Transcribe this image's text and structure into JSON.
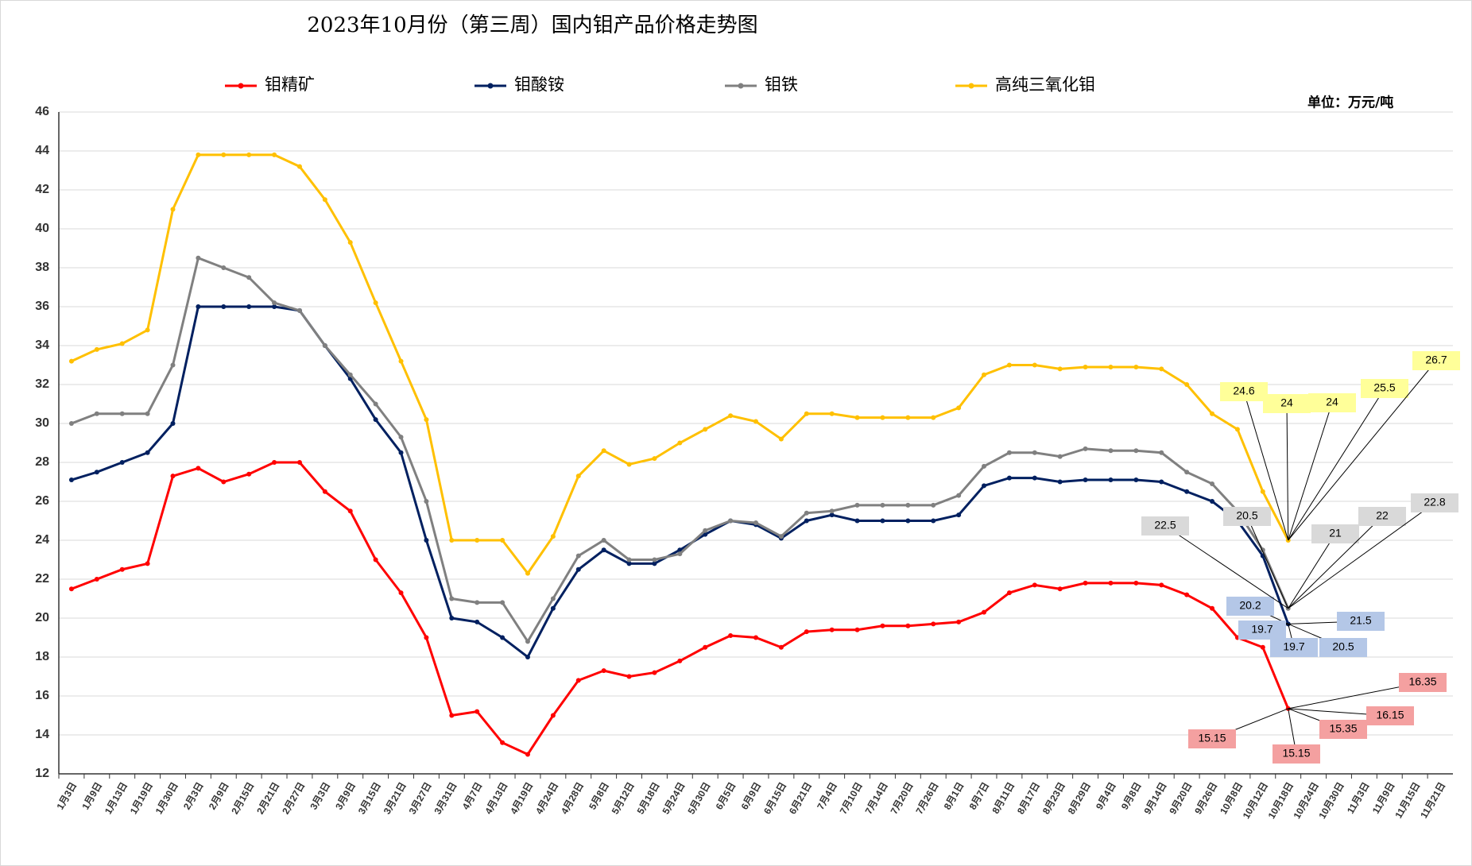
{
  "chart_data": {
    "type": "line",
    "title": "2023年10月份（第三周）国内钼产品价格走势图",
    "unit": "单位：万元/吨",
    "categories": [
      "1月3日",
      "1月9日",
      "1月13日",
      "1月19日",
      "1月30日",
      "2月3日",
      "2月9日",
      "2月15日",
      "2月21日",
      "2月27日",
      "3月3日",
      "3月9日",
      "3月15日",
      "3月21日",
      "3月27日",
      "3月31日",
      "4月7日",
      "4月13日",
      "4月19日",
      "4月24日",
      "4月28日",
      "5月8日",
      "5月12日",
      "5月18日",
      "5月24日",
      "5月30日",
      "6月5日",
      "6月9日",
      "6月15日",
      "6月21日",
      "7月4日",
      "7月10日",
      "7月14日",
      "7月20日",
      "7月26日",
      "8月1日",
      "8月7日",
      "8月11日",
      "8月17日",
      "8月23日",
      "8月29日",
      "9月4日",
      "9月8日",
      "9月14日",
      "9月20日",
      "9月26日",
      "10月8日",
      "10月12日",
      "10月18日",
      "10月24日",
      "10月30日",
      "11月3日",
      "11月9日",
      "11月15日",
      "11月21日"
    ],
    "ylim": [
      12,
      46
    ],
    "yticks": [
      12,
      14,
      16,
      18,
      20,
      22,
      24,
      26,
      28,
      30,
      32,
      34,
      36,
      38,
      40,
      42,
      44,
      46
    ],
    "grid": true,
    "series": [
      {
        "name": "钼精矿",
        "color": "#ff0000",
        "label_color": "#f4a0a0",
        "values": [
          21.5,
          22,
          22.5,
          22.8,
          27.3,
          27.7,
          27,
          27.4,
          28,
          28,
          26.5,
          25.5,
          23,
          21.3,
          19,
          15,
          15.2,
          13.6,
          13,
          15,
          16.8,
          17.3,
          17,
          17.2,
          17.8,
          18.5,
          19.1,
          19,
          18.5,
          19.3,
          19.4,
          19.4,
          19.6,
          19.6,
          19.7,
          19.8,
          20.3,
          21.3,
          21.7,
          21.5,
          21.8,
          21.8,
          21.8,
          21.7,
          21.2,
          20.5,
          19,
          18.5,
          15.35,
          null,
          null,
          null,
          null,
          null,
          null
        ],
        "callouts": [
          15.15,
          15.15,
          15.35,
          16.15,
          16.35
        ]
      },
      {
        "name": "钼酸铵",
        "color": "#002060",
        "label_color": "#b4c7e7",
        "values": [
          27.1,
          27.5,
          28,
          28.5,
          30,
          36,
          36,
          36,
          36,
          35.8,
          34,
          32.3,
          30.2,
          28.5,
          24,
          20,
          19.8,
          19,
          18,
          20.5,
          22.5,
          23.5,
          22.8,
          22.8,
          23.5,
          24.3,
          25,
          24.8,
          24.1,
          25,
          25.3,
          25,
          25,
          25,
          25,
          25.3,
          26.8,
          27.2,
          27.2,
          27,
          27.1,
          27.1,
          27.1,
          27,
          26.5,
          26,
          25,
          23.2,
          19.7,
          null,
          null,
          null,
          null,
          null,
          null
        ],
        "callouts": [
          20.2,
          19.7,
          19.7,
          20.5,
          21.5
        ]
      },
      {
        "name": "钼铁",
        "color": "#808080",
        "label_color": "#d9d9d9",
        "values": [
          30,
          30.5,
          30.5,
          30.5,
          33,
          38.5,
          38,
          37.5,
          36.2,
          35.8,
          34,
          32.5,
          31,
          29.3,
          26,
          21,
          20.8,
          20.8,
          18.8,
          21,
          23.2,
          24,
          23,
          23,
          23.3,
          24.5,
          25,
          24.9,
          24.2,
          25.4,
          25.5,
          25.8,
          25.8,
          25.8,
          25.8,
          26.3,
          27.8,
          28.5,
          28.5,
          28.3,
          28.7,
          28.6,
          28.6,
          28.5,
          27.5,
          26.9,
          25.5,
          23.5,
          20.5,
          null,
          null,
          null,
          null,
          null,
          null
        ],
        "callouts": [
          22.5,
          20.5,
          21,
          22,
          22.8
        ]
      },
      {
        "name": "高纯三氧化钼",
        "color": "#ffc000",
        "label_color": "#ffff99",
        "values": [
          33.2,
          33.8,
          34.1,
          34.8,
          41,
          43.8,
          43.8,
          43.8,
          43.8,
          43.2,
          41.5,
          39.3,
          36.2,
          33.2,
          30.2,
          24,
          24,
          24,
          22.3,
          24.2,
          27.3,
          28.6,
          27.9,
          28.2,
          29,
          29.7,
          30.4,
          30.1,
          29.2,
          30.5,
          30.5,
          30.3,
          30.3,
          30.3,
          30.3,
          30.8,
          32.5,
          33,
          33,
          32.8,
          32.9,
          32.9,
          32.9,
          32.8,
          32,
          30.5,
          29.7,
          26.5,
          24,
          null,
          null,
          null,
          null,
          null,
          null
        ],
        "callouts": [
          24.6,
          24,
          24,
          25.5,
          26.7
        ]
      }
    ]
  }
}
